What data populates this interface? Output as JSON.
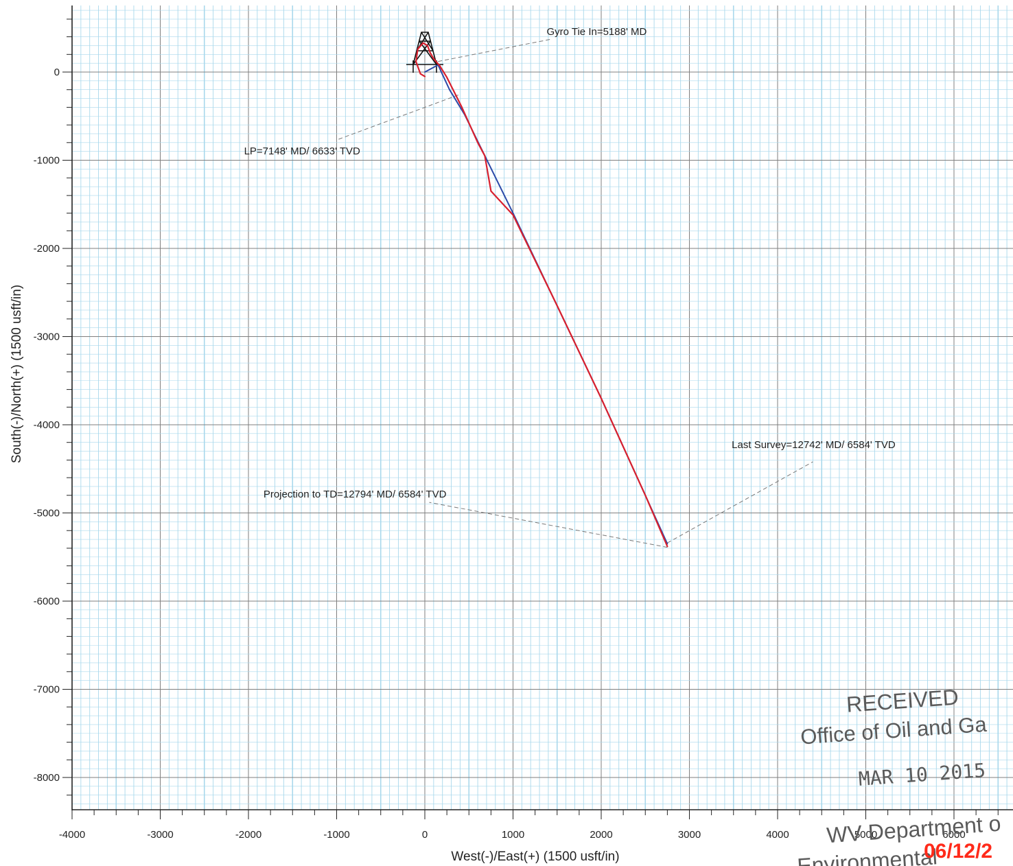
{
  "chart_data": {
    "type": "line",
    "title": "",
    "xlabel": "West(-)/East(+) (1500 usft/in)",
    "ylabel": "South(-)/North(+) (1500 usft/in)",
    "xlim": [
      -4000,
      6700
    ],
    "ylim": [
      -8400,
      800
    ],
    "x_ticks": [
      -4000,
      -3000,
      -2000,
      -1000,
      0,
      1000,
      2000,
      3000,
      4000,
      5000,
      6000
    ],
    "y_ticks": [
      0,
      -1000,
      -2000,
      -3000,
      -4000,
      -5000,
      -6000,
      -7000,
      -8000
    ],
    "x_tick_labels": [
      "-4000",
      "-3000",
      "-2000",
      "-1000",
      "0",
      "1000",
      "2000",
      "3000",
      "4000",
      "5000",
      "6000"
    ],
    "y_tick_labels": [
      "0",
      "-1000",
      "-2000",
      "-3000",
      "-4000",
      "-5000",
      "-6000",
      "-7000",
      "-8000"
    ],
    "grid": true,
    "colors": {
      "grid_major": "#7f7f7f",
      "grid_minor": "#a9d8ec",
      "plan": "#2b4aa8",
      "actual": "#d8202e",
      "leader": "#777777",
      "stamp": "#5a5a5a",
      "overlay": "#ff2a1a"
    },
    "series": [
      {
        "key": "plan",
        "points": [
          [
            0,
            0
          ],
          [
            150,
            80
          ],
          [
            280,
            -200
          ],
          [
            450,
            -480
          ],
          [
            1000,
            -1600
          ],
          [
            2000,
            -3700
          ],
          [
            2750,
            -5350
          ]
        ]
      },
      {
        "key": "actual",
        "points": [
          [
            0,
            -50
          ],
          [
            -50,
            -20
          ],
          [
            -100,
            120
          ],
          [
            -80,
            260
          ],
          [
            -20,
            330
          ],
          [
            30,
            300
          ],
          [
            60,
            220
          ],
          [
            100,
            150
          ],
          [
            170,
            70
          ],
          [
            250,
            -60
          ],
          [
            420,
            -400
          ],
          [
            600,
            -800
          ],
          [
            680,
            -950
          ],
          [
            750,
            -1350
          ],
          [
            1000,
            -1620
          ],
          [
            1500,
            -2650
          ],
          [
            2000,
            -3700
          ],
          [
            2500,
            -4800
          ],
          [
            2750,
            -5380
          ]
        ]
      }
    ],
    "annotations": [
      {
        "text": "Gyro Tie In=5188' MD",
        "point": [
          150,
          120
        ],
        "label_at": [
          1420,
          370
        ]
      },
      {
        "text": "LP=7148' MD/ 6633' TVD",
        "point": [
          380,
          -260
        ],
        "label_at": [
          -1000,
          -770
        ]
      },
      {
        "text": "Last Survey=12742' MD/ 6584' TVD",
        "point": [
          2750,
          -5340
        ],
        "label_at": [
          4400,
          -4420
        ]
      },
      {
        "text": "Projection to TD=12794' MD/ 6584' TVD",
        "point": [
          2750,
          -5390
        ],
        "label_at": [
          50,
          -4880
        ]
      }
    ]
  },
  "stamp": {
    "line1": "RECEIVED",
    "line2": "Office of Oil and Ga",
    "line3": "MAR 10 2015",
    "line4": "WV Department o",
    "line5": "Environmental"
  },
  "overlay_date": "06/12/2"
}
